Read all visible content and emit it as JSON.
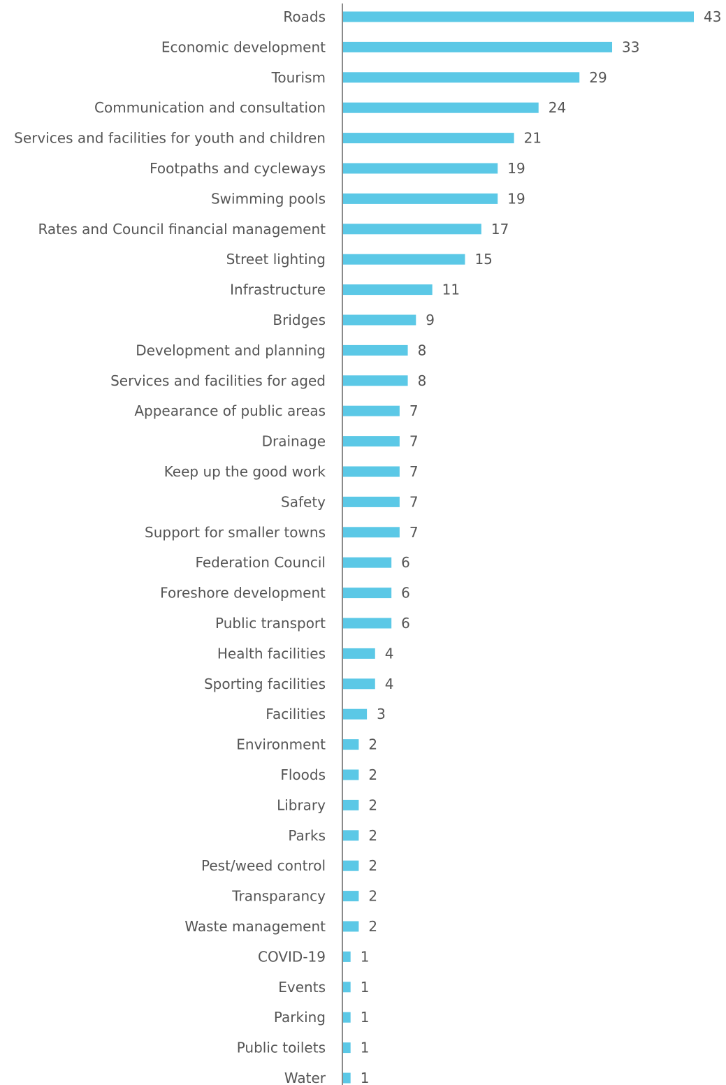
{
  "chart_data": {
    "type": "bar",
    "orientation": "horizontal",
    "categories": [
      "Roads",
      "Economic development",
      "Tourism",
      "Communication and consultation",
      "Services and facilities for youth and children",
      "Footpaths and cycleways",
      "Swimming pools",
      "Rates and Council financial management",
      "Street lighting",
      "Infrastructure",
      "Bridges",
      "Development and planning",
      "Services and facilities for aged",
      "Appearance of public areas",
      "Drainage",
      "Keep up the good work",
      "Safety",
      "Support for smaller towns",
      "Federation Council",
      "Foreshore development",
      "Public transport",
      "Health facilities",
      "Sporting facilities",
      "Facilities",
      "Environment",
      "Floods",
      "Library",
      "Parks",
      "Pest/weed control",
      "Transparancy",
      "Waste management",
      "COVID-19",
      "Events",
      "Parking",
      "Public toilets",
      "Water"
    ],
    "values": [
      43,
      33,
      29,
      24,
      21,
      19,
      19,
      17,
      15,
      11,
      9,
      8,
      8,
      7,
      7,
      7,
      7,
      7,
      6,
      6,
      6,
      4,
      4,
      3,
      2,
      2,
      2,
      2,
      2,
      2,
      2,
      1,
      1,
      1,
      1,
      1
    ],
    "title": "",
    "xlabel": "",
    "ylabel": "",
    "xlim": [
      0,
      43
    ],
    "grid": false,
    "legend": "none",
    "data_labels": true,
    "colors": {
      "bar": "#5bc8e6",
      "axis": "#8a8a8a",
      "text": "#555555"
    }
  }
}
